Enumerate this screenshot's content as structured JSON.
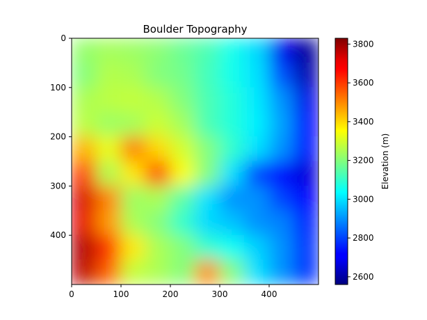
{
  "chart_data": {
    "type": "heatmap",
    "title": "Boulder Topography",
    "xlabel": "",
    "ylabel": "",
    "x_ticks": [
      "0",
      "100",
      "200",
      "300",
      "400"
    ],
    "y_ticks": [
      "0",
      "100",
      "200",
      "300",
      "400"
    ],
    "xlim": [
      0,
      500
    ],
    "ylim": [
      500,
      0
    ],
    "colormap": "jet",
    "colorbar": {
      "label": "Elevation (m)",
      "min": 2560,
      "max": 3830,
      "ticks": [
        "2600",
        "2800",
        "3000",
        "3200",
        "3400",
        "3600",
        "3800"
      ]
    },
    "grid_cols": 10,
    "grid_rows": 10,
    "values": [
      [
        3220,
        3240,
        3230,
        3210,
        3170,
        3130,
        3060,
        2990,
        2700,
        2590
      ],
      [
        3200,
        3260,
        3250,
        3200,
        3180,
        3120,
        3060,
        3000,
        2820,
        2620
      ],
      [
        3250,
        3270,
        3280,
        3260,
        3200,
        3130,
        3080,
        3010,
        2900,
        2690
      ],
      [
        3270,
        3230,
        3240,
        3290,
        3240,
        3130,
        3080,
        3020,
        2920,
        2720
      ],
      [
        3450,
        3330,
        3520,
        3400,
        3300,
        3200,
        3100,
        3000,
        2900,
        2730
      ],
      [
        3600,
        3250,
        3380,
        3600,
        3350,
        3200,
        3000,
        2800,
        2720,
        2670
      ],
      [
        3720,
        3510,
        3230,
        3250,
        3150,
        3000,
        2900,
        2900,
        2800,
        2720
      ],
      [
        3700,
        3480,
        3250,
        3200,
        3100,
        2990,
        2960,
        2900,
        2880,
        2760
      ],
      [
        3770,
        3610,
        3380,
        3250,
        3200,
        3100,
        3050,
        2980,
        2900,
        2780
      ],
      [
        3750,
        3550,
        3280,
        3250,
        3200,
        3500,
        3200,
        3000,
        2900,
        2780
      ]
    ]
  }
}
